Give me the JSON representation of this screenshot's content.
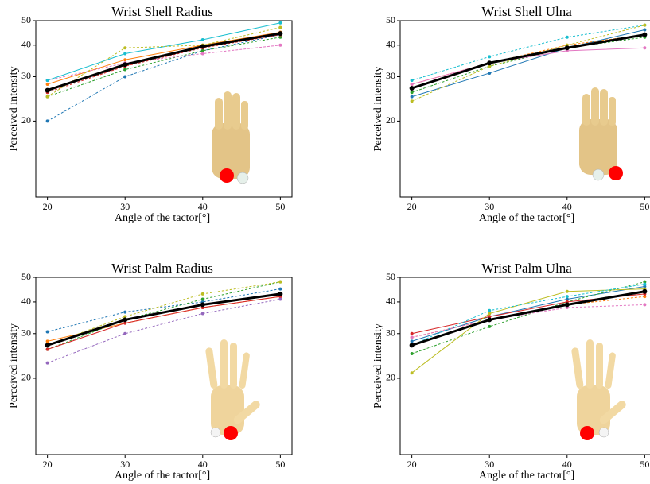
{
  "chart_data": [
    {
      "type": "line",
      "title": "Wrist Shell Radius",
      "xlabel": "Angle of the tactor[°]",
      "ylabel": "Perceived intensity",
      "log_y": true,
      "x": [
        20,
        30,
        40,
        50
      ],
      "xlim": [
        18.5,
        51.5
      ],
      "ylim": [
        10,
        50
      ],
      "xticks": [
        20,
        30,
        40,
        50
      ],
      "yticks": [
        20,
        30,
        40,
        50
      ],
      "series": [
        {
          "color": "#1f77b4",
          "dashed": true,
          "values": [
            20,
            30,
            38,
            44
          ]
        },
        {
          "color": "#ff7f0e",
          "dashed": false,
          "values": [
            28,
            35,
            40,
            45
          ]
        },
        {
          "color": "#2ca02c",
          "dashed": true,
          "values": [
            25,
            32,
            38,
            43
          ]
        },
        {
          "color": "#d62728",
          "dashed": true,
          "values": [
            26,
            33,
            39,
            44
          ]
        },
        {
          "color": "#e377c2",
          "dashed": true,
          "values": [
            29,
            34,
            37,
            40
          ]
        },
        {
          "color": "#17becf",
          "dashed": false,
          "values": [
            29,
            37,
            42,
            49
          ]
        },
        {
          "color": "#bcbd22",
          "dashed": true,
          "values": [
            25,
            39,
            40,
            47
          ]
        },
        {
          "color": "#000000",
          "dashed": false,
          "bold": true,
          "values": [
            26.5,
            33.5,
            39.5,
            44.5
          ]
        }
      ]
    },
    {
      "type": "line",
      "title": "Wrist Shell Ulna",
      "xlabel": "Angle of the tactor[°]",
      "ylabel": "Perceived intensity",
      "log_y": true,
      "x": [
        20,
        30,
        40,
        50
      ],
      "xlim": [
        18.5,
        51.5
      ],
      "ylim": [
        10,
        50
      ],
      "xticks": [
        20,
        30,
        40,
        50
      ],
      "yticks": [
        20,
        30,
        40,
        50
      ],
      "series": [
        {
          "color": "#1f77b4",
          "dashed": false,
          "values": [
            25,
            31,
            39,
            46
          ]
        },
        {
          "color": "#ff7f0e",
          "dashed": true,
          "values": [
            28,
            34,
            40,
            44
          ]
        },
        {
          "color": "#2ca02c",
          "dashed": true,
          "values": [
            26,
            33,
            39,
            43
          ]
        },
        {
          "color": "#e377c2",
          "dashed": false,
          "values": [
            28,
            34,
            38,
            39
          ]
        },
        {
          "color": "#17becf",
          "dashed": true,
          "values": [
            29,
            36,
            43,
            48
          ]
        },
        {
          "color": "#bcbd22",
          "dashed": true,
          "values": [
            24,
            33,
            40,
            48
          ]
        },
        {
          "color": "#000000",
          "dashed": false,
          "bold": true,
          "values": [
            27,
            34,
            39,
            44
          ]
        }
      ]
    },
    {
      "type": "line",
      "title": "Wrist Palm Radius",
      "xlabel": "Angle of the tactor[°]",
      "ylabel": "Perceived intensity",
      "log_y": true,
      "x": [
        20,
        30,
        40,
        50
      ],
      "xlim": [
        18.5,
        51.5
      ],
      "ylim": [
        10,
        50
      ],
      "xticks": [
        20,
        30,
        40,
        50
      ],
      "yticks": [
        20,
        30,
        40,
        50
      ],
      "series": [
        {
          "color": "#1f77b4",
          "dashed": true,
          "values": [
            30.5,
            36.5,
            40,
            45
          ]
        },
        {
          "color": "#ff7f0e",
          "dashed": false,
          "values": [
            28,
            33,
            38,
            42
          ]
        },
        {
          "color": "#2ca02c",
          "dashed": true,
          "values": [
            26,
            34,
            41,
            48
          ]
        },
        {
          "color": "#d62728",
          "dashed": false,
          "values": [
            26,
            33,
            38,
            42
          ]
        },
        {
          "color": "#9467bd",
          "dashed": true,
          "values": [
            23,
            30,
            36,
            41
          ]
        },
        {
          "color": "#bcbd22",
          "dashed": true,
          "values": [
            27,
            35,
            43,
            48
          ]
        },
        {
          "color": "#000000",
          "dashed": false,
          "bold": true,
          "values": [
            27,
            34,
            39,
            43
          ]
        }
      ]
    },
    {
      "type": "line",
      "title": "Wrist Palm Ulna",
      "xlabel": "Angle of the tactor[°]",
      "ylabel": "Perceived intensity",
      "log_y": true,
      "x": [
        20,
        30,
        40,
        50
      ],
      "xlim": [
        18.5,
        51.5
      ],
      "ylim": [
        10,
        50
      ],
      "xticks": [
        20,
        30,
        40,
        50
      ],
      "yticks": [
        20,
        30,
        40,
        50
      ],
      "series": [
        {
          "color": "#1f77b4",
          "dashed": false,
          "values": [
            28,
            35,
            41,
            46
          ]
        },
        {
          "color": "#ff7f0e",
          "dashed": true,
          "values": [
            29,
            34,
            39,
            42
          ]
        },
        {
          "color": "#2ca02c",
          "dashed": true,
          "values": [
            25,
            32,
            40,
            48
          ]
        },
        {
          "color": "#d62728",
          "dashed": false,
          "values": [
            30,
            35,
            40,
            43
          ]
        },
        {
          "color": "#e377c2",
          "dashed": true,
          "values": [
            29,
            34,
            38,
            39
          ]
        },
        {
          "color": "#bcbd22",
          "dashed": false,
          "values": [
            21,
            36,
            44,
            45
          ]
        },
        {
          "color": "#17becf",
          "dashed": true,
          "values": [
            27,
            37,
            42,
            47
          ]
        },
        {
          "color": "#000000",
          "dashed": false,
          "bold": true,
          "values": [
            27,
            34,
            39,
            44
          ]
        }
      ]
    }
  ]
}
